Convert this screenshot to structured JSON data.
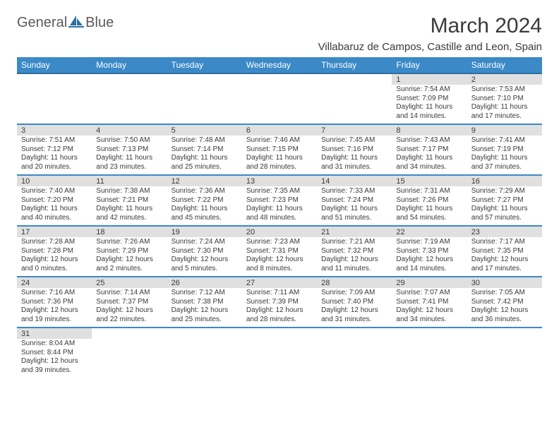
{
  "brand": {
    "word1": "General",
    "word2": "Blue"
  },
  "title": "March 2024",
  "location": "Villabaruz de Campos, Castille and Leon, Spain",
  "colors": {
    "header_bg": "#3b89c7",
    "header_border": "#2f6ea0",
    "row_divider": "#3b89c7",
    "daynum_bg": "#e0e0e0",
    "text": "#3a3a3a",
    "logo_text": "#5a5a5a",
    "logo_blue": "#2f6ea0"
  },
  "weekdays": [
    "Sunday",
    "Monday",
    "Tuesday",
    "Wednesday",
    "Thursday",
    "Friday",
    "Saturday"
  ],
  "weeks": [
    [
      null,
      null,
      null,
      null,
      null,
      {
        "d": "1",
        "sr": "Sunrise: 7:54 AM",
        "ss": "Sunset: 7:09 PM",
        "dl1": "Daylight: 11 hours",
        "dl2": "and 14 minutes."
      },
      {
        "d": "2",
        "sr": "Sunrise: 7:53 AM",
        "ss": "Sunset: 7:10 PM",
        "dl1": "Daylight: 11 hours",
        "dl2": "and 17 minutes."
      }
    ],
    [
      {
        "d": "3",
        "sr": "Sunrise: 7:51 AM",
        "ss": "Sunset: 7:12 PM",
        "dl1": "Daylight: 11 hours",
        "dl2": "and 20 minutes."
      },
      {
        "d": "4",
        "sr": "Sunrise: 7:50 AM",
        "ss": "Sunset: 7:13 PM",
        "dl1": "Daylight: 11 hours",
        "dl2": "and 23 minutes."
      },
      {
        "d": "5",
        "sr": "Sunrise: 7:48 AM",
        "ss": "Sunset: 7:14 PM",
        "dl1": "Daylight: 11 hours",
        "dl2": "and 25 minutes."
      },
      {
        "d": "6",
        "sr": "Sunrise: 7:46 AM",
        "ss": "Sunset: 7:15 PM",
        "dl1": "Daylight: 11 hours",
        "dl2": "and 28 minutes."
      },
      {
        "d": "7",
        "sr": "Sunrise: 7:45 AM",
        "ss": "Sunset: 7:16 PM",
        "dl1": "Daylight: 11 hours",
        "dl2": "and 31 minutes."
      },
      {
        "d": "8",
        "sr": "Sunrise: 7:43 AM",
        "ss": "Sunset: 7:17 PM",
        "dl1": "Daylight: 11 hours",
        "dl2": "and 34 minutes."
      },
      {
        "d": "9",
        "sr": "Sunrise: 7:41 AM",
        "ss": "Sunset: 7:19 PM",
        "dl1": "Daylight: 11 hours",
        "dl2": "and 37 minutes."
      }
    ],
    [
      {
        "d": "10",
        "sr": "Sunrise: 7:40 AM",
        "ss": "Sunset: 7:20 PM",
        "dl1": "Daylight: 11 hours",
        "dl2": "and 40 minutes."
      },
      {
        "d": "11",
        "sr": "Sunrise: 7:38 AM",
        "ss": "Sunset: 7:21 PM",
        "dl1": "Daylight: 11 hours",
        "dl2": "and 42 minutes."
      },
      {
        "d": "12",
        "sr": "Sunrise: 7:36 AM",
        "ss": "Sunset: 7:22 PM",
        "dl1": "Daylight: 11 hours",
        "dl2": "and 45 minutes."
      },
      {
        "d": "13",
        "sr": "Sunrise: 7:35 AM",
        "ss": "Sunset: 7:23 PM",
        "dl1": "Daylight: 11 hours",
        "dl2": "and 48 minutes."
      },
      {
        "d": "14",
        "sr": "Sunrise: 7:33 AM",
        "ss": "Sunset: 7:24 PM",
        "dl1": "Daylight: 11 hours",
        "dl2": "and 51 minutes."
      },
      {
        "d": "15",
        "sr": "Sunrise: 7:31 AM",
        "ss": "Sunset: 7:26 PM",
        "dl1": "Daylight: 11 hours",
        "dl2": "and 54 minutes."
      },
      {
        "d": "16",
        "sr": "Sunrise: 7:29 AM",
        "ss": "Sunset: 7:27 PM",
        "dl1": "Daylight: 11 hours",
        "dl2": "and 57 minutes."
      }
    ],
    [
      {
        "d": "17",
        "sr": "Sunrise: 7:28 AM",
        "ss": "Sunset: 7:28 PM",
        "dl1": "Daylight: 12 hours",
        "dl2": "and 0 minutes."
      },
      {
        "d": "18",
        "sr": "Sunrise: 7:26 AM",
        "ss": "Sunset: 7:29 PM",
        "dl1": "Daylight: 12 hours",
        "dl2": "and 2 minutes."
      },
      {
        "d": "19",
        "sr": "Sunrise: 7:24 AM",
        "ss": "Sunset: 7:30 PM",
        "dl1": "Daylight: 12 hours",
        "dl2": "and 5 minutes."
      },
      {
        "d": "20",
        "sr": "Sunrise: 7:23 AM",
        "ss": "Sunset: 7:31 PM",
        "dl1": "Daylight: 12 hours",
        "dl2": "and 8 minutes."
      },
      {
        "d": "21",
        "sr": "Sunrise: 7:21 AM",
        "ss": "Sunset: 7:32 PM",
        "dl1": "Daylight: 12 hours",
        "dl2": "and 11 minutes."
      },
      {
        "d": "22",
        "sr": "Sunrise: 7:19 AM",
        "ss": "Sunset: 7:33 PM",
        "dl1": "Daylight: 12 hours",
        "dl2": "and 14 minutes."
      },
      {
        "d": "23",
        "sr": "Sunrise: 7:17 AM",
        "ss": "Sunset: 7:35 PM",
        "dl1": "Daylight: 12 hours",
        "dl2": "and 17 minutes."
      }
    ],
    [
      {
        "d": "24",
        "sr": "Sunrise: 7:16 AM",
        "ss": "Sunset: 7:36 PM",
        "dl1": "Daylight: 12 hours",
        "dl2": "and 19 minutes."
      },
      {
        "d": "25",
        "sr": "Sunrise: 7:14 AM",
        "ss": "Sunset: 7:37 PM",
        "dl1": "Daylight: 12 hours",
        "dl2": "and 22 minutes."
      },
      {
        "d": "26",
        "sr": "Sunrise: 7:12 AM",
        "ss": "Sunset: 7:38 PM",
        "dl1": "Daylight: 12 hours",
        "dl2": "and 25 minutes."
      },
      {
        "d": "27",
        "sr": "Sunrise: 7:11 AM",
        "ss": "Sunset: 7:39 PM",
        "dl1": "Daylight: 12 hours",
        "dl2": "and 28 minutes."
      },
      {
        "d": "28",
        "sr": "Sunrise: 7:09 AM",
        "ss": "Sunset: 7:40 PM",
        "dl1": "Daylight: 12 hours",
        "dl2": "and 31 minutes."
      },
      {
        "d": "29",
        "sr": "Sunrise: 7:07 AM",
        "ss": "Sunset: 7:41 PM",
        "dl1": "Daylight: 12 hours",
        "dl2": "and 34 minutes."
      },
      {
        "d": "30",
        "sr": "Sunrise: 7:05 AM",
        "ss": "Sunset: 7:42 PM",
        "dl1": "Daylight: 12 hours",
        "dl2": "and 36 minutes."
      }
    ],
    [
      {
        "d": "31",
        "sr": "Sunrise: 8:04 AM",
        "ss": "Sunset: 8:44 PM",
        "dl1": "Daylight: 12 hours",
        "dl2": "and 39 minutes."
      },
      null,
      null,
      null,
      null,
      null,
      null
    ]
  ]
}
